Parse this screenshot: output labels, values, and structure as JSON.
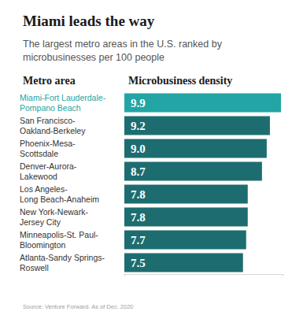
{
  "chart_data": {
    "type": "bar",
    "orientation": "horizontal",
    "title": "Miami leads the way",
    "subtitle": "The largest metro areas in the U.S. ranked by microbusinesses per 100 people",
    "column_headers": [
      "Metro area",
      "Microbusiness density"
    ],
    "source": "Source: Venture Forward. As of Dec. 2020",
    "categories": [
      "Miami-Fort Lauderdale-\nPompano Beach",
      "San Francisco-\nOakland-Berkeley",
      "Phoenix-Mesa-\nScottsdale",
      "Denver-Aurora-\nLakewood",
      "Los Angeles-\nLong Beach-Anaheim",
      "New York-Newark-\nJersey City",
      "Minneapolis-St. Paul-\nBloomington",
      "Atlanta-Sandy Springs-\nRoswell"
    ],
    "values": [
      9.9,
      9.2,
      9.0,
      8.7,
      7.8,
      7.8,
      7.7,
      7.5
    ],
    "value_labels": [
      "9.9",
      "9.2",
      "9.0",
      "8.7",
      "7.8",
      "7.8",
      "7.7",
      "7.5"
    ],
    "colors": [
      "#22a5a4",
      "#1d6d70",
      "#1d6d70",
      "#1d6d70",
      "#1d6d70",
      "#1d6d70",
      "#1d6d70",
      "#1d6d70"
    ],
    "xlim": [
      0,
      10
    ],
    "xticks": [
      0,
      10
    ],
    "tick_labels": false,
    "grid": false,
    "data_labels": true
  }
}
